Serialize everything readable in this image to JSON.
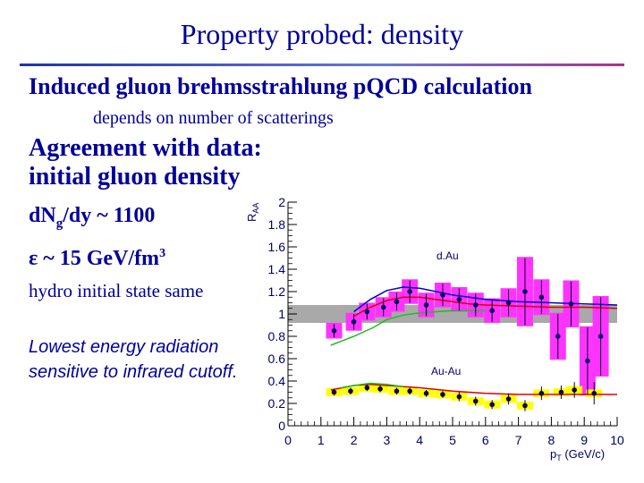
{
  "slide": {
    "title": "Property probed: density",
    "subtitle": "Induced gluon brehmsstrahlung pQCD calculation",
    "subtitle_note": "depends on number of scatterings",
    "agreement_line1": "Agreement with data:",
    "agreement_line2": "initial gluon density",
    "density_prefix": "d",
    "density_N": "N",
    "density_sub": "g",
    "density_suffix": "/dy ~ 1100",
    "energy_symbol": "ε",
    "energy_text": " ~ 15 GeV/fm",
    "energy_exp": "3",
    "hydro_note": "hydro initial state same",
    "lowest_energy_note": "Lowest energy radiation sensitive to infrared cutoff."
  },
  "chart_data": {
    "type": "scatter",
    "ylabel": "R",
    "ylabel_sub": "AA",
    "xlabel": "p",
    "xlabel_sub": "T",
    "xlabel_unit": " (GeV/c)",
    "xlim": [
      0,
      10
    ],
    "ylim": [
      0,
      2
    ],
    "xticks": [
      "0",
      "1",
      "2",
      "3",
      "4",
      "5",
      "6",
      "7",
      "8",
      "9",
      "10"
    ],
    "yticks": [
      "0",
      "0.2",
      "0.4",
      "0.6",
      "0.8",
      "1",
      "1.2",
      "1.4",
      "1.6",
      "1.8",
      "2"
    ],
    "annotations": [
      "d.Au",
      "Au-Au"
    ],
    "reference_band": {
      "center": 1.0,
      "half_width": 0.08
    },
    "colors": {
      "dau_box": "#ff33ff",
      "auau_box": "#ffff00",
      "band": "#a0a0a0",
      "theory_blue": "#0000cc",
      "theory_red": "#dd0000",
      "theory_green": "#22bb22",
      "point": "#000066"
    },
    "series": [
      {
        "name": "d.Au",
        "x": [
          1.4,
          2.0,
          2.4,
          2.9,
          3.3,
          3.7,
          4.2,
          4.7,
          5.2,
          5.7,
          6.2,
          6.7,
          7.2,
          7.7,
          8.2,
          8.6,
          9.1,
          9.5
        ],
        "y": [
          0.85,
          0.93,
          1.02,
          1.06,
          1.11,
          1.2,
          1.08,
          1.17,
          1.13,
          1.08,
          1.03,
          1.1,
          1.2,
          1.15,
          0.8,
          1.09,
          0.58,
          0.8
        ],
        "err": [
          0.06,
          0.07,
          0.07,
          0.08,
          0.08,
          0.1,
          0.1,
          0.1,
          0.1,
          0.1,
          0.1,
          0.12,
          0.3,
          0.15,
          0.2,
          0.2,
          0.3,
          0.35
        ]
      },
      {
        "name": "Au-Au",
        "x": [
          1.4,
          1.9,
          2.4,
          2.8,
          3.3,
          3.7,
          4.2,
          4.7,
          5.2,
          5.7,
          6.2,
          6.7,
          7.2,
          7.7,
          8.3,
          8.7,
          9.3
        ],
        "y": [
          0.3,
          0.31,
          0.34,
          0.33,
          0.31,
          0.31,
          0.29,
          0.28,
          0.26,
          0.22,
          0.19,
          0.24,
          0.18,
          0.29,
          0.3,
          0.32,
          0.29
        ],
        "err": [
          0.03,
          0.03,
          0.03,
          0.03,
          0.03,
          0.03,
          0.03,
          0.03,
          0.04,
          0.04,
          0.04,
          0.05,
          0.05,
          0.06,
          0.06,
          0.07,
          0.1
        ]
      }
    ],
    "theory": [
      {
        "name": "blue-curve",
        "x": [
          2.0,
          2.5,
          3.0,
          3.5,
          4.0,
          4.5,
          5.0,
          5.5,
          6.0,
          7.0,
          8.0,
          9.0,
          10.0
        ],
        "y": [
          1.02,
          1.13,
          1.21,
          1.24,
          1.23,
          1.2,
          1.17,
          1.15,
          1.13,
          1.11,
          1.1,
          1.09,
          1.08
        ]
      },
      {
        "name": "red-curve",
        "x": [
          2.0,
          2.5,
          3.0,
          3.5,
          4.0,
          4.5,
          5.0,
          5.5,
          6.0,
          7.0,
          8.0,
          9.0,
          10.0
        ],
        "y": [
          0.98,
          1.06,
          1.12,
          1.15,
          1.15,
          1.13,
          1.11,
          1.09,
          1.08,
          1.07,
          1.06,
          1.06,
          1.05
        ]
      },
      {
        "name": "green-curve",
        "x": [
          1.3,
          2.0,
          2.6,
          3.0,
          3.5,
          4.0,
          4.5,
          5.0,
          5.5,
          6.0
        ],
        "y": [
          0.72,
          0.8,
          0.88,
          0.95,
          0.99,
          1.01,
          1.02,
          1.03,
          1.03,
          1.03
        ]
      },
      {
        "name": "red-auau-curve",
        "x": [
          1.3,
          2.0,
          2.5,
          3.0,
          4.0,
          5.0,
          6.0,
          7.0,
          8.0,
          9.0,
          10.0
        ],
        "y": [
          0.32,
          0.36,
          0.37,
          0.36,
          0.34,
          0.31,
          0.29,
          0.28,
          0.28,
          0.28,
          0.28
        ]
      },
      {
        "name": "green-auau-curve",
        "x": [
          1.6,
          2.0,
          2.5,
          3.0,
          3.5
        ],
        "y": [
          0.34,
          0.36,
          0.38,
          0.37,
          0.35
        ]
      }
    ]
  }
}
